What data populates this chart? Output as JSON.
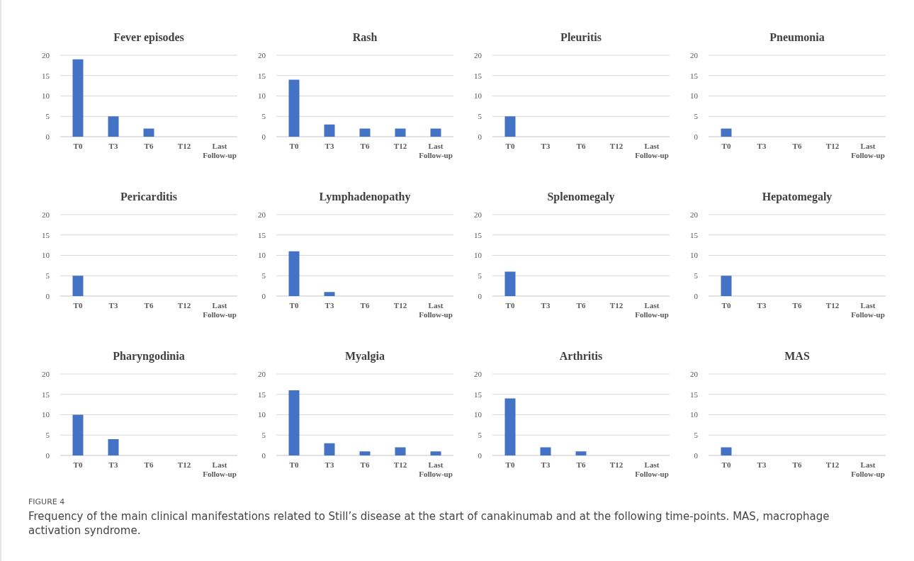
{
  "chart_data": [
    {
      "type": "bar",
      "title": "Fever episodes",
      "categories": [
        "T0",
        "T3",
        "T6",
        "T12",
        "Last Follow-up"
      ],
      "values": [
        19,
        5,
        2,
        0,
        0
      ],
      "color": "#4472c4",
      "ylim": [
        0,
        20
      ],
      "yticks": [
        0,
        5,
        10,
        15,
        20
      ],
      "grid": "y"
    },
    {
      "type": "bar",
      "title": "Rash",
      "categories": [
        "T0",
        "T3",
        "T6",
        "T12",
        "Last Follow-up"
      ],
      "values": [
        14,
        3,
        2,
        2,
        2
      ],
      "color": "#4472c4",
      "ylim": [
        0,
        20
      ],
      "yticks": [
        0,
        5,
        10,
        15,
        20
      ],
      "grid": "y"
    },
    {
      "type": "bar",
      "title": "Pleuritis",
      "categories": [
        "T0",
        "T3",
        "T6",
        "T12",
        "Last Follow-up"
      ],
      "values": [
        5,
        0,
        0,
        0,
        0
      ],
      "color": "#4472c4",
      "ylim": [
        0,
        20
      ],
      "yticks": [
        0,
        5,
        10,
        15,
        20
      ],
      "grid": "y"
    },
    {
      "type": "bar",
      "title": "Pneumonia",
      "categories": [
        "T0",
        "T3",
        "T6",
        "T12",
        "Last Follow-up"
      ],
      "values": [
        2,
        0,
        0,
        0,
        0
      ],
      "color": "#4472c4",
      "ylim": [
        0,
        20
      ],
      "yticks": [
        0,
        5,
        10,
        15,
        20
      ],
      "grid": "y"
    },
    {
      "type": "bar",
      "title": "Pericarditis",
      "categories": [
        "T0",
        "T3",
        "T6",
        "T12",
        "Last Follow-up"
      ],
      "values": [
        5,
        0,
        0,
        0,
        0
      ],
      "color": "#4472c4",
      "ylim": [
        0,
        20
      ],
      "yticks": [
        0,
        5,
        10,
        15,
        20
      ],
      "grid": "y"
    },
    {
      "type": "bar",
      "title": "Lymphadenopathy",
      "categories": [
        "T0",
        "T3",
        "T6",
        "T12",
        "Last Follow-up"
      ],
      "values": [
        11,
        1,
        0,
        0,
        0
      ],
      "color": "#4472c4",
      "ylim": [
        0,
        20
      ],
      "yticks": [
        0,
        5,
        10,
        15,
        20
      ],
      "grid": "y"
    },
    {
      "type": "bar",
      "title": "Splenomegaly",
      "categories": [
        "T0",
        "T3",
        "T6",
        "T12",
        "Last Follow-up"
      ],
      "values": [
        6,
        0,
        0,
        0,
        0
      ],
      "color": "#4472c4",
      "ylim": [
        0,
        20
      ],
      "yticks": [
        0,
        5,
        10,
        15,
        20
      ],
      "grid": "y"
    },
    {
      "type": "bar",
      "title": "Hepatomegaly",
      "categories": [
        "T0",
        "T3",
        "T6",
        "T12",
        "Last Follow-up"
      ],
      "values": [
        5,
        0,
        0,
        0,
        0
      ],
      "color": "#4472c4",
      "ylim": [
        0,
        20
      ],
      "yticks": [
        0,
        5,
        10,
        15,
        20
      ],
      "grid": "y"
    },
    {
      "type": "bar",
      "title": "Pharyngodinia",
      "categories": [
        "T0",
        "T3",
        "T6",
        "T12",
        "Last Follow-up"
      ],
      "values": [
        10,
        4,
        0,
        0,
        0
      ],
      "color": "#4472c4",
      "ylim": [
        0,
        20
      ],
      "yticks": [
        0,
        5,
        10,
        15,
        20
      ],
      "grid": "y"
    },
    {
      "type": "bar",
      "title": "Myalgia",
      "categories": [
        "T0",
        "T3",
        "T6",
        "T12",
        "Last Follow-up"
      ],
      "values": [
        16,
        3,
        1,
        2,
        1
      ],
      "color": "#4472c4",
      "ylim": [
        0,
        20
      ],
      "yticks": [
        0,
        5,
        10,
        15,
        20
      ],
      "grid": "y"
    },
    {
      "type": "bar",
      "title": "Arthritis",
      "categories": [
        "T0",
        "T3",
        "T6",
        "T12",
        "Last Follow-up"
      ],
      "values": [
        14,
        2,
        1,
        0,
        0
      ],
      "color": "#4472c4",
      "ylim": [
        0,
        20
      ],
      "yticks": [
        0,
        5,
        10,
        15,
        20
      ],
      "grid": "y"
    },
    {
      "type": "bar",
      "title": "MAS",
      "categories": [
        "T0",
        "T3",
        "T6",
        "T12",
        "Last Follow-up"
      ],
      "values": [
        2,
        0,
        0,
        0,
        0
      ],
      "color": "#4472c4",
      "ylim": [
        0,
        20
      ],
      "yticks": [
        0,
        5,
        10,
        15,
        20
      ],
      "grid": "y",
      "annotations": [
        "FIGURE 4",
        "Frequency of the main clinical manifestations related to Still’s disease at the start of canakinumab and at the following time-points. MAS, macrophage activation syndrome."
      ]
    }
  ]
}
